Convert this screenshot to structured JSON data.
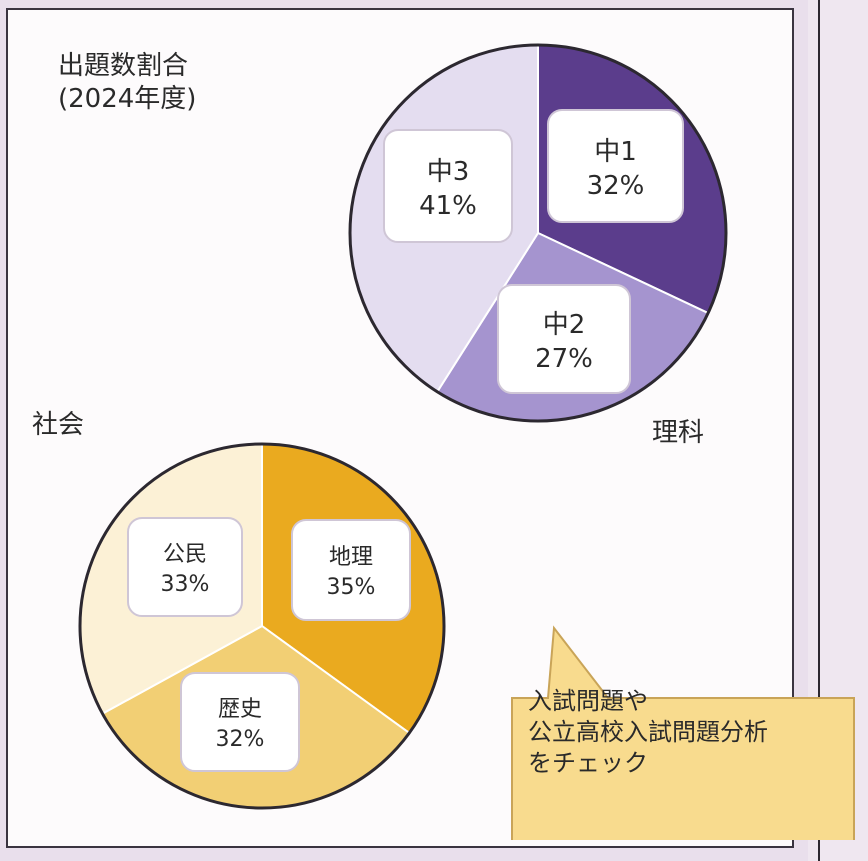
{
  "heading": {
    "line1": "出題数割合",
    "line2": "(2024年度)"
  },
  "chart_data": [
    {
      "type": "pie",
      "title": "理科",
      "slices": [
        {
          "label": "中1",
          "value": 32,
          "value_text": "32%",
          "color": "#5b3d8c"
        },
        {
          "label": "中2",
          "value": 27,
          "value_text": "27%",
          "color": "#a594cf"
        },
        {
          "label": "中3",
          "value": 41,
          "value_text": "41%",
          "color": "#e4ddf0"
        }
      ]
    },
    {
      "type": "pie",
      "title": "社会",
      "slices": [
        {
          "label": "地理",
          "value": 35,
          "value_text": "35%",
          "color": "#eaaa1f"
        },
        {
          "label": "歴史",
          "value": 32,
          "value_text": "32%",
          "color": "#f2cf74"
        },
        {
          "label": "公民",
          "value": 33,
          "value_text": "33%",
          "color": "#fcf1d6"
        }
      ]
    }
  ],
  "callout": {
    "line1": "入試問題や",
    "line2": "公立高校入試問題分析",
    "line3": "をチェック",
    "color": "#f8db8e"
  }
}
